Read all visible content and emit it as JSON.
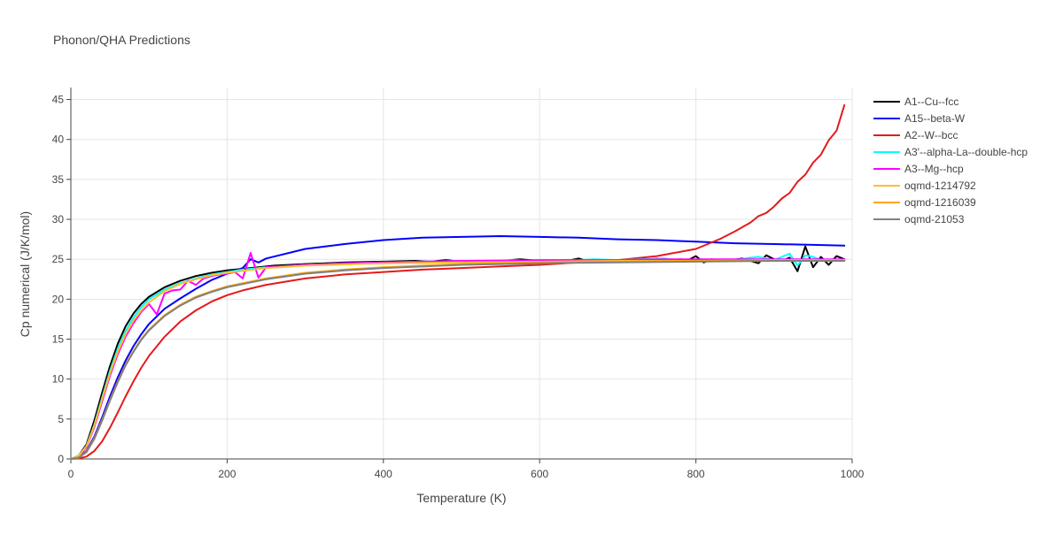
{
  "chart_data": {
    "type": "line",
    "title": "Phonon/QHA Predictions",
    "xlabel": "Temperature (K)",
    "ylabel": "Cp numerical (J/K/mol)",
    "xlim": [
      0,
      1000
    ],
    "ylim": [
      0,
      46.5
    ],
    "xticks": [
      0,
      200,
      400,
      600,
      800,
      1000
    ],
    "yticks": [
      0,
      5,
      10,
      15,
      20,
      25,
      30,
      35,
      40,
      45
    ],
    "grid": true,
    "legend_position": "right",
    "series": [
      {
        "name": "A1--Cu--fcc",
        "color": "#000000",
        "points": [
          [
            0,
            0
          ],
          [
            10,
            0.4
          ],
          [
            20,
            1.8
          ],
          [
            30,
            4.8
          ],
          [
            40,
            8.3
          ],
          [
            50,
            11.6
          ],
          [
            60,
            14.4
          ],
          [
            70,
            16.6
          ],
          [
            80,
            18.2
          ],
          [
            90,
            19.4
          ],
          [
            100,
            20.3
          ],
          [
            120,
            21.5
          ],
          [
            140,
            22.3
          ],
          [
            160,
            22.9
          ],
          [
            180,
            23.3
          ],
          [
            200,
            23.6
          ],
          [
            220,
            23.8
          ],
          [
            240,
            24.0
          ],
          [
            260,
            24.2
          ],
          [
            300,
            24.4
          ],
          [
            350,
            24.6
          ],
          [
            400,
            24.7
          ],
          [
            440,
            24.8
          ],
          [
            460,
            24.7
          ],
          [
            480,
            24.9
          ],
          [
            500,
            24.7
          ],
          [
            550,
            24.8
          ],
          [
            575,
            25.0
          ],
          [
            600,
            24.8
          ],
          [
            640,
            24.9
          ],
          [
            650,
            25.1
          ],
          [
            660,
            24.8
          ],
          [
            700,
            24.9
          ],
          [
            720,
            24.8
          ],
          [
            730,
            25.1
          ],
          [
            740,
            24.9
          ],
          [
            750,
            25.1
          ],
          [
            760,
            24.8
          ],
          [
            780,
            25.0
          ],
          [
            790,
            24.9
          ],
          [
            800,
            25.4
          ],
          [
            810,
            24.6
          ],
          [
            820,
            25.0
          ],
          [
            840,
            24.8
          ],
          [
            860,
            25.1
          ],
          [
            870,
            24.8
          ],
          [
            880,
            24.5
          ],
          [
            890,
            25.5
          ],
          [
            900,
            25.0
          ],
          [
            910,
            24.8
          ],
          [
            920,
            25.2
          ],
          [
            930,
            23.5
          ],
          [
            940,
            26.6
          ],
          [
            950,
            24.0
          ],
          [
            960,
            25.3
          ],
          [
            970,
            24.3
          ],
          [
            980,
            25.4
          ],
          [
            990,
            25.0
          ]
        ]
      },
      {
        "name": "A15--beta-W",
        "color": "#0000ff",
        "points": [
          [
            0,
            0
          ],
          [
            10,
            0.2
          ],
          [
            20,
            1.0
          ],
          [
            30,
            2.8
          ],
          [
            40,
            5.2
          ],
          [
            50,
            7.8
          ],
          [
            60,
            10.2
          ],
          [
            70,
            12.3
          ],
          [
            80,
            14.1
          ],
          [
            90,
            15.6
          ],
          [
            100,
            16.9
          ],
          [
            120,
            18.8
          ],
          [
            140,
            20.1
          ],
          [
            160,
            21.3
          ],
          [
            180,
            22.4
          ],
          [
            200,
            23.2
          ],
          [
            220,
            23.9
          ],
          [
            230,
            25.0
          ],
          [
            240,
            24.6
          ],
          [
            250,
            25.1
          ],
          [
            300,
            26.3
          ],
          [
            350,
            26.9
          ],
          [
            400,
            27.4
          ],
          [
            450,
            27.7
          ],
          [
            500,
            27.8
          ],
          [
            550,
            27.9
          ],
          [
            600,
            27.8
          ],
          [
            650,
            27.7
          ],
          [
            700,
            27.5
          ],
          [
            750,
            27.4
          ],
          [
            800,
            27.2
          ],
          [
            850,
            27.0
          ],
          [
            900,
            26.9
          ],
          [
            950,
            26.8
          ],
          [
            990,
            26.7
          ]
        ]
      },
      {
        "name": "A2--W--bcc",
        "color": "#e41a1c",
        "points": [
          [
            0,
            0
          ],
          [
            10,
            0.05
          ],
          [
            20,
            0.3
          ],
          [
            30,
            1.0
          ],
          [
            40,
            2.2
          ],
          [
            50,
            3.9
          ],
          [
            60,
            5.8
          ],
          [
            70,
            7.8
          ],
          [
            80,
            9.7
          ],
          [
            90,
            11.4
          ],
          [
            100,
            12.9
          ],
          [
            120,
            15.3
          ],
          [
            140,
            17.2
          ],
          [
            160,
            18.6
          ],
          [
            180,
            19.7
          ],
          [
            200,
            20.5
          ],
          [
            220,
            21.1
          ],
          [
            250,
            21.8
          ],
          [
            300,
            22.6
          ],
          [
            350,
            23.1
          ],
          [
            400,
            23.4
          ],
          [
            450,
            23.7
          ],
          [
            500,
            23.9
          ],
          [
            550,
            24.1
          ],
          [
            600,
            24.3
          ],
          [
            650,
            24.6
          ],
          [
            700,
            24.9
          ],
          [
            750,
            25.4
          ],
          [
            800,
            26.3
          ],
          [
            830,
            27.5
          ],
          [
            850,
            28.5
          ],
          [
            870,
            29.6
          ],
          [
            880,
            30.4
          ],
          [
            890,
            30.8
          ],
          [
            900,
            31.6
          ],
          [
            910,
            32.6
          ],
          [
            920,
            33.3
          ],
          [
            930,
            34.7
          ],
          [
            940,
            35.6
          ],
          [
            950,
            37.1
          ],
          [
            960,
            38.1
          ],
          [
            970,
            39.9
          ],
          [
            980,
            41.1
          ],
          [
            990,
            44.3
          ]
        ]
      },
      {
        "name": "A3'--alpha-La--double-hcp",
        "color": "#00ffff",
        "points": [
          [
            0,
            0
          ],
          [
            10,
            0.4
          ],
          [
            20,
            1.6
          ],
          [
            30,
            4.3
          ],
          [
            40,
            7.7
          ],
          [
            50,
            11.0
          ],
          [
            60,
            13.8
          ],
          [
            70,
            16.0
          ],
          [
            80,
            17.7
          ],
          [
            90,
            19.0
          ],
          [
            100,
            20.0
          ],
          [
            120,
            21.2
          ],
          [
            140,
            22.0
          ],
          [
            160,
            22.6
          ],
          [
            180,
            23.1
          ],
          [
            200,
            23.4
          ],
          [
            220,
            23.7
          ],
          [
            250,
            24.0
          ],
          [
            300,
            24.3
          ],
          [
            350,
            24.5
          ],
          [
            400,
            24.6
          ],
          [
            450,
            24.7
          ],
          [
            500,
            24.8
          ],
          [
            560,
            24.9
          ],
          [
            600,
            24.8
          ],
          [
            650,
            24.9
          ],
          [
            670,
            25.0
          ],
          [
            700,
            24.9
          ],
          [
            760,
            25.1
          ],
          [
            780,
            24.8
          ],
          [
            800,
            25.0
          ],
          [
            850,
            24.9
          ],
          [
            870,
            25.2
          ],
          [
            880,
            25.3
          ],
          [
            900,
            24.9
          ],
          [
            920,
            25.7
          ],
          [
            930,
            24.2
          ],
          [
            940,
            25.5
          ],
          [
            950,
            25.3
          ],
          [
            960,
            24.9
          ],
          [
            990,
            24.9
          ]
        ]
      },
      {
        "name": "A3--Mg--hcp",
        "color": "#ff00ff",
        "points": [
          [
            0,
            0
          ],
          [
            10,
            0.3
          ],
          [
            20,
            1.5
          ],
          [
            30,
            4.0
          ],
          [
            40,
            7.2
          ],
          [
            50,
            10.4
          ],
          [
            60,
            13.1
          ],
          [
            70,
            15.3
          ],
          [
            80,
            17.0
          ],
          [
            90,
            18.4
          ],
          [
            100,
            19.4
          ],
          [
            110,
            18.1
          ],
          [
            120,
            20.7
          ],
          [
            130,
            21.1
          ],
          [
            140,
            21.2
          ],
          [
            150,
            22.3
          ],
          [
            160,
            21.8
          ],
          [
            170,
            22.6
          ],
          [
            180,
            22.9
          ],
          [
            190,
            23.1
          ],
          [
            200,
            23.2
          ],
          [
            210,
            23.4
          ],
          [
            220,
            22.6
          ],
          [
            230,
            25.8
          ],
          [
            240,
            22.7
          ],
          [
            250,
            24.0
          ],
          [
            300,
            24.3
          ],
          [
            350,
            24.5
          ],
          [
            400,
            24.6
          ],
          [
            450,
            24.7
          ],
          [
            500,
            24.8
          ],
          [
            550,
            24.8
          ],
          [
            600,
            24.9
          ],
          [
            650,
            24.9
          ],
          [
            700,
            24.9
          ],
          [
            750,
            25.0
          ],
          [
            800,
            25.0
          ],
          [
            850,
            25.0
          ],
          [
            900,
            25.0
          ],
          [
            950,
            25.0
          ],
          [
            990,
            25.0
          ]
        ]
      },
      {
        "name": "oqmd-1214792",
        "color": "#fdbf2d",
        "points": [
          [
            0,
            0
          ],
          [
            10,
            0.35
          ],
          [
            20,
            1.6
          ],
          [
            30,
            4.2
          ],
          [
            40,
            7.5
          ],
          [
            50,
            10.7
          ],
          [
            60,
            13.4
          ],
          [
            70,
            15.6
          ],
          [
            80,
            17.3
          ],
          [
            90,
            18.6
          ],
          [
            100,
            19.6
          ],
          [
            120,
            21.0
          ],
          [
            140,
            21.9
          ],
          [
            160,
            22.5
          ],
          [
            180,
            23.0
          ],
          [
            200,
            23.3
          ],
          [
            250,
            23.9
          ],
          [
            300,
            24.2
          ],
          [
            400,
            24.5
          ],
          [
            500,
            24.6
          ],
          [
            600,
            24.7
          ],
          [
            700,
            24.8
          ],
          [
            800,
            24.8
          ],
          [
            900,
            24.9
          ],
          [
            990,
            24.9
          ]
        ]
      },
      {
        "name": "oqmd-1216039",
        "color": "#ffa500",
        "points": [
          [
            0,
            0
          ],
          [
            10,
            0.15
          ],
          [
            20,
            0.9
          ],
          [
            30,
            2.6
          ],
          [
            40,
            4.9
          ],
          [
            50,
            7.4
          ],
          [
            60,
            9.7
          ],
          [
            70,
            11.8
          ],
          [
            80,
            13.5
          ],
          [
            90,
            15.0
          ],
          [
            100,
            16.2
          ],
          [
            120,
            18.0
          ],
          [
            140,
            19.3
          ],
          [
            160,
            20.3
          ],
          [
            180,
            21.0
          ],
          [
            200,
            21.6
          ],
          [
            250,
            22.6
          ],
          [
            300,
            23.3
          ],
          [
            350,
            23.7
          ],
          [
            400,
            24.0
          ],
          [
            500,
            24.4
          ],
          [
            600,
            24.6
          ],
          [
            700,
            24.7
          ],
          [
            800,
            24.8
          ],
          [
            900,
            24.9
          ],
          [
            990,
            24.9
          ]
        ]
      },
      {
        "name": "oqmd-21053",
        "color": "#808080",
        "points": [
          [
            0,
            0
          ],
          [
            10,
            0.15
          ],
          [
            20,
            0.85
          ],
          [
            30,
            2.5
          ],
          [
            40,
            4.8
          ],
          [
            50,
            7.3
          ],
          [
            60,
            9.6
          ],
          [
            70,
            11.7
          ],
          [
            80,
            13.4
          ],
          [
            90,
            14.9
          ],
          [
            100,
            16.1
          ],
          [
            120,
            17.9
          ],
          [
            140,
            19.2
          ],
          [
            160,
            20.2
          ],
          [
            180,
            20.9
          ],
          [
            200,
            21.5
          ],
          [
            250,
            22.5
          ],
          [
            300,
            23.2
          ],
          [
            350,
            23.6
          ],
          [
            400,
            23.9
          ],
          [
            500,
            24.3
          ],
          [
            600,
            24.5
          ],
          [
            700,
            24.6
          ],
          [
            800,
            24.7
          ],
          [
            900,
            24.8
          ],
          [
            990,
            24.8
          ]
        ]
      }
    ]
  }
}
